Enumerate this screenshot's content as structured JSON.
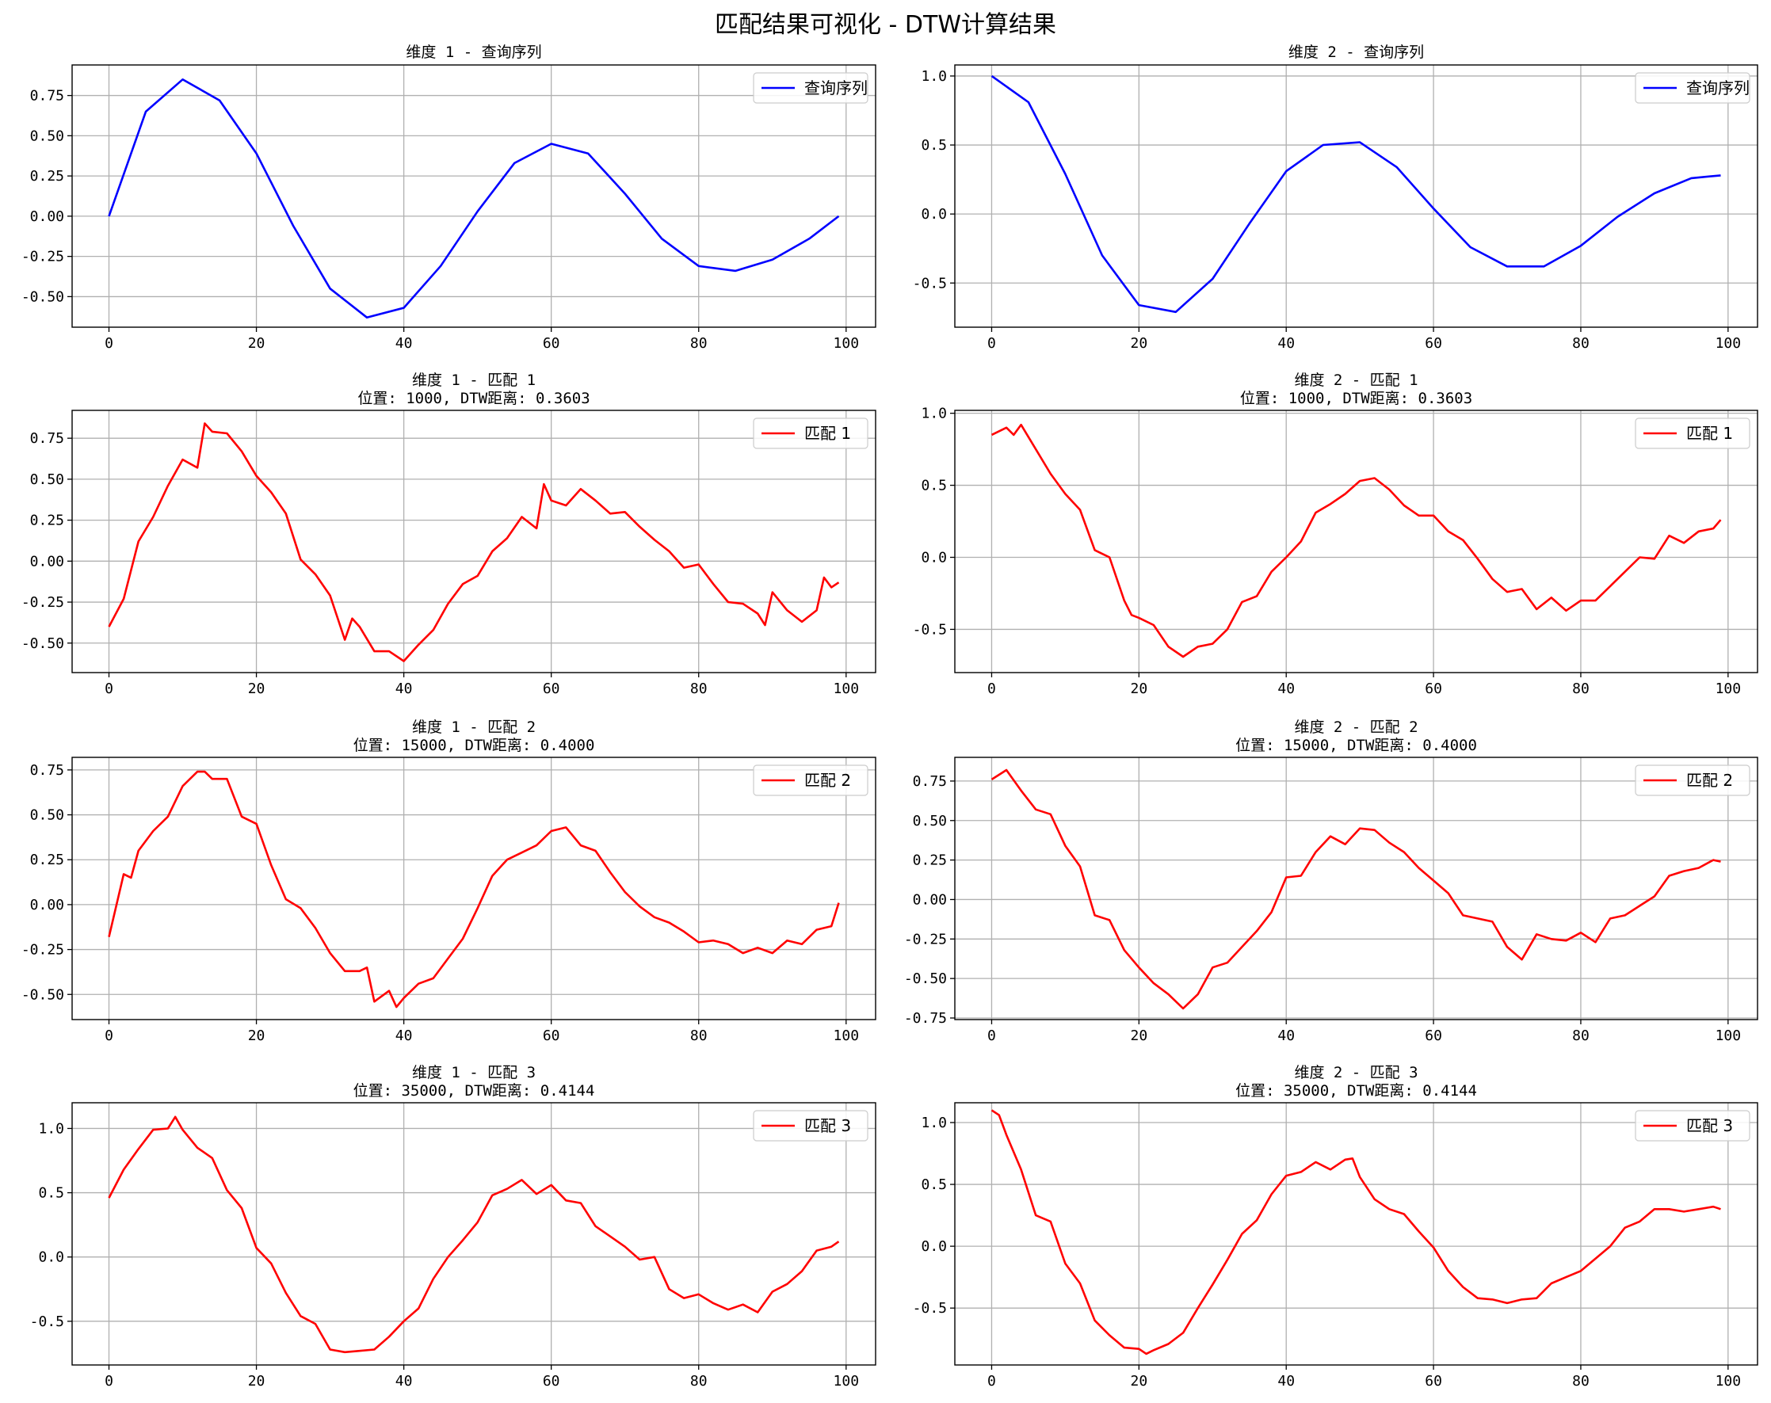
{
  "figure": {
    "title": "匹配结果可视化 - DTW计算结果",
    "colors": {
      "query": "#0000ff",
      "match": "#ff0000",
      "grid": "#b0b0b0",
      "axis": "#000000"
    }
  },
  "chart_data": [
    {
      "type": "line",
      "title": "维度 1 - 查询序列",
      "subtitle": "",
      "legend": "查询序列",
      "legend_placement": "top-right",
      "color": "#0000ff",
      "grid": true,
      "xlim": [
        -5,
        104
      ],
      "ylim": [
        -0.69,
        0.94
      ],
      "xticks": [
        0,
        20,
        40,
        60,
        80,
        100
      ],
      "yticks": [
        -0.5,
        -0.25,
        0.0,
        0.25,
        0.5,
        0.75
      ],
      "ytick_labels": [
        "-0.50",
        "-0.25",
        "0.00",
        "0.25",
        "0.50",
        "0.75"
      ],
      "x": [
        0,
        5,
        10,
        15,
        20,
        25,
        30,
        35,
        40,
        45,
        50,
        55,
        60,
        65,
        70,
        75,
        80,
        85,
        90,
        95,
        99
      ],
      "values": [
        0.0,
        0.65,
        0.85,
        0.72,
        0.39,
        -0.06,
        -0.45,
        -0.63,
        -0.57,
        -0.31,
        0.03,
        0.33,
        0.45,
        0.39,
        0.14,
        -0.14,
        -0.31,
        -0.34,
        -0.27,
        -0.14,
        0.0
      ]
    },
    {
      "type": "line",
      "title": "维度 2 - 查询序列",
      "subtitle": "",
      "legend": "查询序列",
      "legend_placement": "top-right",
      "color": "#0000ff",
      "grid": true,
      "xlim": [
        -5,
        104
      ],
      "ylim": [
        -0.82,
        1.08
      ],
      "xticks": [
        0,
        20,
        40,
        60,
        80,
        100
      ],
      "yticks": [
        -0.5,
        0.0,
        0.5,
        1.0
      ],
      "ytick_labels": [
        "-0.5",
        "0.0",
        "0.5",
        "1.0"
      ],
      "x": [
        0,
        5,
        10,
        15,
        20,
        25,
        30,
        35,
        40,
        45,
        50,
        55,
        60,
        65,
        70,
        75,
        80,
        85,
        90,
        95,
        99
      ],
      "values": [
        1.0,
        0.81,
        0.29,
        -0.3,
        -0.66,
        -0.71,
        -0.47,
        -0.07,
        0.31,
        0.5,
        0.52,
        0.34,
        0.04,
        -0.24,
        -0.38,
        -0.38,
        -0.23,
        -0.02,
        0.15,
        0.26,
        0.28
      ]
    },
    {
      "type": "line",
      "title": "维度 1 - 匹配 1",
      "subtitle": "位置: 1000, DTW距离: 0.3603",
      "legend": "匹配 1",
      "legend_placement": "top-right",
      "color": "#ff0000",
      "grid": true,
      "xlim": [
        -5,
        104
      ],
      "ylim": [
        -0.68,
        0.92
      ],
      "xticks": [
        0,
        20,
        40,
        60,
        80,
        100
      ],
      "yticks": [
        -0.5,
        -0.25,
        0.0,
        0.25,
        0.5,
        0.75
      ],
      "ytick_labels": [
        "-0.50",
        "-0.25",
        "0.00",
        "0.25",
        "0.50",
        "0.75"
      ],
      "x": [
        0,
        2,
        4,
        6,
        8,
        10,
        12,
        13,
        14,
        16,
        18,
        20,
        22,
        24,
        26,
        28,
        30,
        32,
        33,
        34,
        36,
        38,
        40,
        42,
        44,
        46,
        48,
        50,
        52,
        54,
        56,
        58,
        59,
        60,
        62,
        64,
        66,
        68,
        70,
        72,
        74,
        76,
        78,
        80,
        82,
        84,
        86,
        88,
        89,
        90,
        92,
        94,
        96,
        97,
        98,
        99
      ],
      "values": [
        -0.4,
        -0.23,
        0.12,
        0.27,
        0.46,
        0.62,
        0.57,
        0.84,
        0.79,
        0.78,
        0.67,
        0.52,
        0.42,
        0.29,
        0.01,
        -0.08,
        -0.21,
        -0.48,
        -0.35,
        -0.4,
        -0.55,
        -0.55,
        -0.61,
        -0.51,
        -0.42,
        -0.26,
        -0.14,
        -0.09,
        0.06,
        0.14,
        0.27,
        0.2,
        0.47,
        0.37,
        0.34,
        0.44,
        0.37,
        0.29,
        0.3,
        0.21,
        0.13,
        0.06,
        -0.04,
        -0.02,
        -0.14,
        -0.25,
        -0.26,
        -0.32,
        -0.39,
        -0.19,
        -0.3,
        -0.37,
        -0.3,
        -0.1,
        -0.16,
        -0.13
      ]
    },
    {
      "type": "line",
      "title": "维度 2 - 匹配 1",
      "subtitle": "位置: 1000, DTW距离: 0.3603",
      "legend": "匹配 1",
      "legend_placement": "top-right",
      "color": "#ff0000",
      "grid": true,
      "xlim": [
        -5,
        104
      ],
      "ylim": [
        -0.8,
        1.02
      ],
      "xticks": [
        0,
        20,
        40,
        60,
        80,
        100
      ],
      "yticks": [
        -0.5,
        0.0,
        0.5,
        1.0
      ],
      "ytick_labels": [
        "-0.5",
        "0.0",
        "0.5",
        "1.0"
      ],
      "x": [
        0,
        2,
        3,
        4,
        6,
        8,
        10,
        12,
        14,
        16,
        18,
        19,
        20,
        22,
        24,
        26,
        28,
        30,
        32,
        34,
        36,
        38,
        40,
        42,
        44,
        46,
        48,
        50,
        52,
        54,
        56,
        58,
        60,
        62,
        64,
        66,
        68,
        70,
        72,
        74,
        76,
        78,
        80,
        82,
        84,
        86,
        88,
        90,
        92,
        94,
        96,
        98,
        99
      ],
      "values": [
        0.85,
        0.9,
        0.85,
        0.92,
        0.75,
        0.58,
        0.44,
        0.33,
        0.05,
        0.0,
        -0.3,
        -0.4,
        -0.42,
        -0.47,
        -0.62,
        -0.69,
        -0.62,
        -0.6,
        -0.5,
        -0.31,
        -0.27,
        -0.1,
        0.0,
        0.11,
        0.31,
        0.37,
        0.44,
        0.53,
        0.55,
        0.47,
        0.36,
        0.29,
        0.29,
        0.18,
        0.12,
        -0.01,
        -0.15,
        -0.24,
        -0.22,
        -0.36,
        -0.28,
        -0.37,
        -0.3,
        -0.3,
        -0.2,
        -0.1,
        0.0,
        -0.01,
        0.15,
        0.1,
        0.18,
        0.2,
        0.26
      ]
    },
    {
      "type": "line",
      "title": "维度 1 - 匹配 2",
      "subtitle": "位置: 15000, DTW距离: 0.4000",
      "legend": "匹配 2",
      "legend_placement": "top-right",
      "color": "#ff0000",
      "grid": true,
      "xlim": [
        -5,
        104
      ],
      "ylim": [
        -0.64,
        0.82
      ],
      "xticks": [
        0,
        20,
        40,
        60,
        80,
        100
      ],
      "yticks": [
        -0.5,
        -0.25,
        0.0,
        0.25,
        0.5,
        0.75
      ],
      "ytick_labels": [
        "-0.50",
        "-0.25",
        "0.00",
        "0.25",
        "0.50",
        "0.75"
      ],
      "x": [
        0,
        2,
        3,
        4,
        6,
        8,
        10,
        12,
        13,
        14,
        16,
        18,
        20,
        22,
        24,
        26,
        28,
        30,
        32,
        34,
        35,
        36,
        38,
        39,
        40,
        42,
        44,
        46,
        48,
        50,
        52,
        54,
        56,
        58,
        60,
        62,
        64,
        66,
        68,
        70,
        72,
        74,
        76,
        78,
        80,
        82,
        84,
        86,
        88,
        90,
        92,
        94,
        96,
        98,
        99
      ],
      "values": [
        -0.18,
        0.17,
        0.15,
        0.3,
        0.41,
        0.49,
        0.66,
        0.74,
        0.74,
        0.7,
        0.7,
        0.49,
        0.45,
        0.22,
        0.03,
        -0.02,
        -0.13,
        -0.27,
        -0.37,
        -0.37,
        -0.35,
        -0.54,
        -0.48,
        -0.57,
        -0.52,
        -0.44,
        -0.41,
        -0.3,
        -0.19,
        -0.02,
        0.16,
        0.25,
        0.29,
        0.33,
        0.41,
        0.43,
        0.33,
        0.3,
        0.18,
        0.07,
        -0.01,
        -0.07,
        -0.1,
        -0.15,
        -0.21,
        -0.2,
        -0.22,
        -0.27,
        -0.24,
        -0.27,
        -0.2,
        -0.22,
        -0.14,
        -0.12,
        0.01
      ]
    },
    {
      "type": "line",
      "title": "维度 2 - 匹配 2",
      "subtitle": "位置: 15000, DTW距离: 0.4000",
      "legend": "匹配 2",
      "legend_placement": "top-right",
      "color": "#ff0000",
      "grid": true,
      "xlim": [
        -5,
        104
      ],
      "ylim": [
        -0.76,
        0.9
      ],
      "xticks": [
        0,
        20,
        40,
        60,
        80,
        100
      ],
      "yticks": [
        -0.75,
        -0.5,
        -0.25,
        0.0,
        0.25,
        0.5,
        0.75
      ],
      "ytick_labels": [
        "-0.75",
        "-0.50",
        "-0.25",
        "0.00",
        "0.25",
        "0.50",
        "0.75"
      ],
      "x": [
        0,
        2,
        4,
        6,
        8,
        10,
        12,
        14,
        16,
        18,
        20,
        22,
        24,
        26,
        28,
        30,
        32,
        34,
        36,
        38,
        40,
        42,
        44,
        46,
        48,
        50,
        52,
        54,
        56,
        58,
        60,
        62,
        64,
        66,
        68,
        70,
        72,
        74,
        76,
        78,
        80,
        82,
        84,
        86,
        88,
        90,
        92,
        94,
        96,
        98,
        99
      ],
      "values": [
        0.76,
        0.82,
        0.69,
        0.57,
        0.54,
        0.34,
        0.21,
        -0.1,
        -0.13,
        -0.32,
        -0.43,
        -0.53,
        -0.6,
        -0.69,
        -0.6,
        -0.43,
        -0.4,
        -0.3,
        -0.2,
        -0.08,
        0.14,
        0.15,
        0.3,
        0.4,
        0.35,
        0.45,
        0.44,
        0.36,
        0.3,
        0.2,
        0.12,
        0.04,
        -0.1,
        -0.12,
        -0.14,
        -0.3,
        -0.38,
        -0.22,
        -0.25,
        -0.26,
        -0.21,
        -0.27,
        -0.12,
        -0.1,
        -0.04,
        0.02,
        0.15,
        0.18,
        0.2,
        0.25,
        0.24
      ]
    },
    {
      "type": "line",
      "title": "维度 1 - 匹配 3",
      "subtitle": "位置: 35000, DTW距离: 0.4144",
      "legend": "匹配 3",
      "legend_placement": "top-right",
      "color": "#ff0000",
      "grid": true,
      "xlim": [
        -5,
        104
      ],
      "ylim": [
        -0.84,
        1.2
      ],
      "xticks": [
        0,
        20,
        40,
        60,
        80,
        100
      ],
      "yticks": [
        -0.5,
        0.0,
        0.5,
        1.0
      ],
      "ytick_labels": [
        "-0.5",
        "0.0",
        "0.5",
        "1.0"
      ],
      "x": [
        0,
        2,
        4,
        6,
        8,
        9,
        10,
        12,
        14,
        16,
        18,
        20,
        22,
        24,
        26,
        28,
        30,
        32,
        34,
        36,
        38,
        40,
        42,
        44,
        46,
        48,
        50,
        52,
        54,
        56,
        58,
        60,
        62,
        64,
        66,
        68,
        70,
        72,
        74,
        76,
        78,
        80,
        82,
        84,
        86,
        88,
        90,
        92,
        94,
        96,
        98,
        99
      ],
      "values": [
        0.46,
        0.68,
        0.84,
        0.99,
        1.0,
        1.09,
        0.99,
        0.85,
        0.77,
        0.52,
        0.38,
        0.07,
        -0.05,
        -0.28,
        -0.46,
        -0.52,
        -0.72,
        -0.74,
        -0.73,
        -0.72,
        -0.62,
        -0.5,
        -0.4,
        -0.17,
        0.0,
        0.13,
        0.27,
        0.48,
        0.53,
        0.6,
        0.49,
        0.56,
        0.44,
        0.42,
        0.24,
        0.16,
        0.08,
        -0.02,
        0.0,
        -0.25,
        -0.32,
        -0.29,
        -0.36,
        -0.41,
        -0.37,
        -0.43,
        -0.27,
        -0.21,
        -0.11,
        0.05,
        0.08,
        0.12
      ]
    },
    {
      "type": "line",
      "title": "维度 2 - 匹配 3",
      "subtitle": "位置: 35000, DTW距离: 0.4144",
      "legend": "匹配 3",
      "legend_placement": "top-right",
      "color": "#ff0000",
      "grid": true,
      "xlim": [
        -5,
        104
      ],
      "ylim": [
        -0.96,
        1.16
      ],
      "xticks": [
        0,
        20,
        40,
        60,
        80,
        100
      ],
      "yticks": [
        -0.5,
        0.0,
        0.5,
        1.0
      ],
      "ytick_labels": [
        "-0.5",
        "0.0",
        "0.5",
        "1.0"
      ],
      "x": [
        0,
        1,
        2,
        4,
        6,
        8,
        10,
        12,
        14,
        16,
        18,
        20,
        21,
        22,
        24,
        26,
        28,
        30,
        32,
        34,
        36,
        38,
        40,
        42,
        44,
        46,
        48,
        49,
        50,
        52,
        54,
        56,
        58,
        60,
        62,
        64,
        66,
        68,
        70,
        72,
        74,
        76,
        78,
        80,
        82,
        84,
        86,
        88,
        90,
        92,
        94,
        96,
        98,
        99
      ],
      "values": [
        1.1,
        1.06,
        0.9,
        0.62,
        0.25,
        0.2,
        -0.14,
        -0.3,
        -0.6,
        -0.72,
        -0.82,
        -0.83,
        -0.87,
        -0.84,
        -0.79,
        -0.7,
        -0.5,
        -0.31,
        -0.11,
        0.1,
        0.21,
        0.42,
        0.57,
        0.6,
        0.68,
        0.62,
        0.7,
        0.71,
        0.56,
        0.38,
        0.3,
        0.26,
        0.12,
        -0.01,
        -0.2,
        -0.33,
        -0.42,
        -0.43,
        -0.46,
        -0.43,
        -0.42,
        -0.3,
        -0.25,
        -0.2,
        -0.1,
        0.0,
        0.15,
        0.2,
        0.3,
        0.3,
        0.28,
        0.3,
        0.32,
        0.3
      ]
    }
  ]
}
